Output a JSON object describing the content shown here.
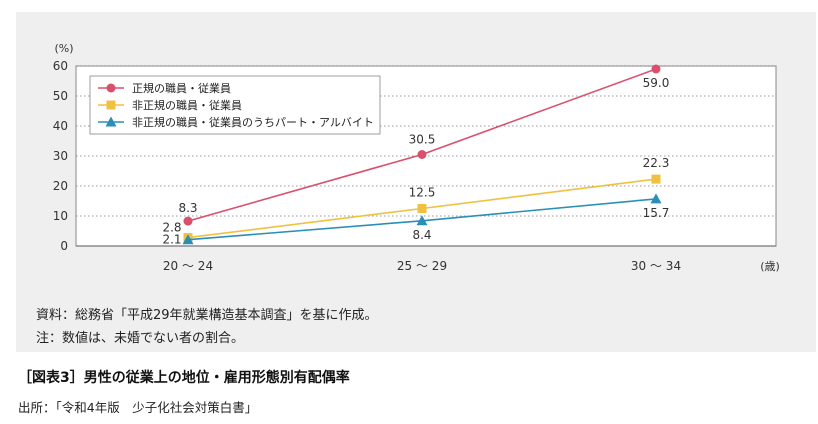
{
  "chart_data": {
    "type": "line",
    "ylabel": "(%)",
    "xlabel": "(歳)",
    "categories": [
      "20 〜 24",
      "25 〜 29",
      "30 〜 34"
    ],
    "ylim": [
      0,
      60
    ],
    "yticks": [
      "0",
      "10",
      "20",
      "30",
      "40",
      "50",
      "60"
    ],
    "grid": "dotted horizontal",
    "legend_position": "top-left",
    "series": [
      {
        "name": "正規の職員・従業員",
        "values": [
          8.3,
          30.5,
          59.0
        ],
        "labels": [
          "8.3",
          "30.5",
          "59.0"
        ],
        "color": "#d9506a",
        "marker": "circle"
      },
      {
        "name": "非正規の職員・従業員",
        "values": [
          2.8,
          12.5,
          22.3
        ],
        "labels": [
          "2.8",
          "12.5",
          "22.3"
        ],
        "color": "#f0c040",
        "marker": "square"
      },
      {
        "name": "非正規の職員・従業員のうちパート・アルバイト",
        "values": [
          2.1,
          8.4,
          15.7
        ],
        "labels": [
          "2.1",
          "8.4",
          "15.7"
        ],
        "color": "#2a8fb8",
        "marker": "triangle"
      }
    ]
  },
  "notes": {
    "source_line": "資料：総務省「平成29年就業構造基本調査」を基に作成。",
    "note_line": "注：数値は、未婚でない者の割合。"
  },
  "caption": "［図表3］男性の従業上の地位・雇用形態別有配偶率",
  "source": "出所：「令和4年版　少子化社会対策白書」"
}
